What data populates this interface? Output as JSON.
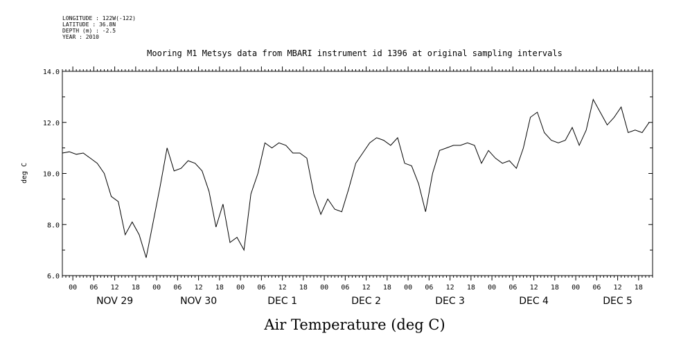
{
  "metadata": [
    "LONGITUDE : 122W(-122)",
    "LATITUDE : 36.8N",
    "DEPTH (m) : -2.5",
    "YEAR : 2010"
  ],
  "chart_data": {
    "type": "line",
    "title": "Mooring M1 Metsys data from MBARI instrument id 1396 at original sampling intervals",
    "xlabel": "Air Temperature (deg C)",
    "ylabel": "deg C",
    "ylim": [
      6.0,
      14.0
    ],
    "y_ticks": [
      "6.0",
      "8.0",
      "10.0",
      "12.0",
      "14.0"
    ],
    "x_unit": "hours since 2010-11-28 21:00",
    "xlim": [
      0,
      169
    ],
    "x_hour_labels": [
      "00",
      "06",
      "12",
      "18"
    ],
    "day_labels": [
      "NOV 29",
      "NOV 30",
      "DEC  1",
      "DEC  2",
      "DEC  3",
      "DEC  4",
      "DEC  5"
    ],
    "grid": false,
    "series": [
      {
        "name": "",
        "x": [
          0,
          2,
          4,
          6,
          8,
          10,
          12,
          14,
          16,
          18,
          20,
          22,
          24,
          26,
          28,
          30,
          32,
          34,
          36,
          38,
          40,
          42,
          44,
          46,
          48,
          50,
          52,
          54,
          56,
          58,
          60,
          62,
          64,
          66,
          68,
          70,
          72,
          74,
          76,
          78,
          80,
          82,
          84,
          86,
          88,
          90,
          92,
          94,
          96,
          98,
          100,
          102,
          104,
          106,
          108,
          110,
          112,
          114,
          116,
          118,
          120,
          122,
          124,
          126,
          128,
          130,
          132,
          134,
          136,
          138,
          140,
          142,
          144,
          146,
          148,
          150,
          152,
          154,
          156,
          158,
          160,
          162,
          164,
          166,
          168
        ],
        "y": [
          10.8,
          10.85,
          10.75,
          10.8,
          10.6,
          10.4,
          10.0,
          9.1,
          8.9,
          7.6,
          8.1,
          7.6,
          6.7,
          8.1,
          9.5,
          11.0,
          10.1,
          10.2,
          10.5,
          10.4,
          10.1,
          9.3,
          7.9,
          8.8,
          7.3,
          7.5,
          7.0,
          9.2,
          10.0,
          11.2,
          11.0,
          11.2,
          11.1,
          10.8,
          10.8,
          10.6,
          9.2,
          8.4,
          9.0,
          8.6,
          8.5,
          9.4,
          10.4,
          10.8,
          11.2,
          11.4,
          11.3,
          11.1,
          11.4,
          10.4,
          10.3,
          9.6,
          8.5,
          10.0,
          10.9,
          11.0,
          11.1,
          11.1,
          11.2,
          11.1,
          10.4,
          10.9,
          10.6,
          10.4,
          10.5,
          10.2,
          11.0,
          12.2,
          12.4,
          11.6,
          11.3,
          11.2,
          11.3,
          11.8,
          11.1,
          11.7,
          12.9,
          12.4,
          11.9,
          12.2,
          12.6,
          11.6,
          11.7,
          11.6,
          12.0
        ]
      }
    ]
  }
}
